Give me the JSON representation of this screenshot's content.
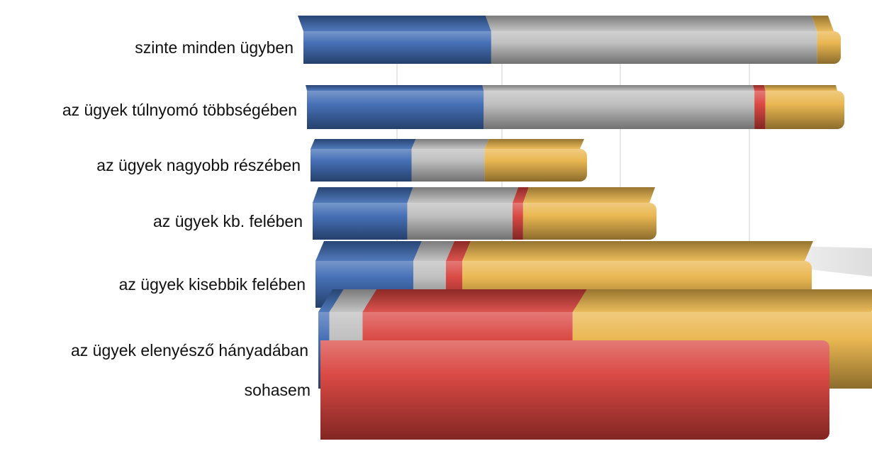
{
  "chart_data": {
    "type": "bar",
    "orientation": "horizontal",
    "stacked": true,
    "style": "3d-perspective",
    "title": "",
    "xlabel": "",
    "ylabel": "",
    "grid": true,
    "legend": "none",
    "categories": [
      "szinte minden ügyben",
      "az ügyek túlnyomó többségében",
      "az ügyek nagyobb részében",
      "az ügyek kb. felében",
      "az ügyek kisebbik felében",
      "az ügyek elenyésző hányadában",
      "sohasem"
    ],
    "series": [
      {
        "values": [
          34,
          32,
          18,
          18,
          18,
          2,
          0
        ],
        "color": "#3d6ab3"
      },
      {
        "values": [
          59,
          49,
          13,
          20,
          6,
          6,
          0
        ],
        "color": "#bdbdbd"
      },
      {
        "values": [
          0,
          2,
          0,
          2,
          3,
          38,
          92
        ],
        "color": "#d8403b"
      },
      {
        "values": [
          3,
          13,
          17,
          24,
          63,
          54,
          0
        ],
        "color": "#e9b44a"
      }
    ]
  }
}
